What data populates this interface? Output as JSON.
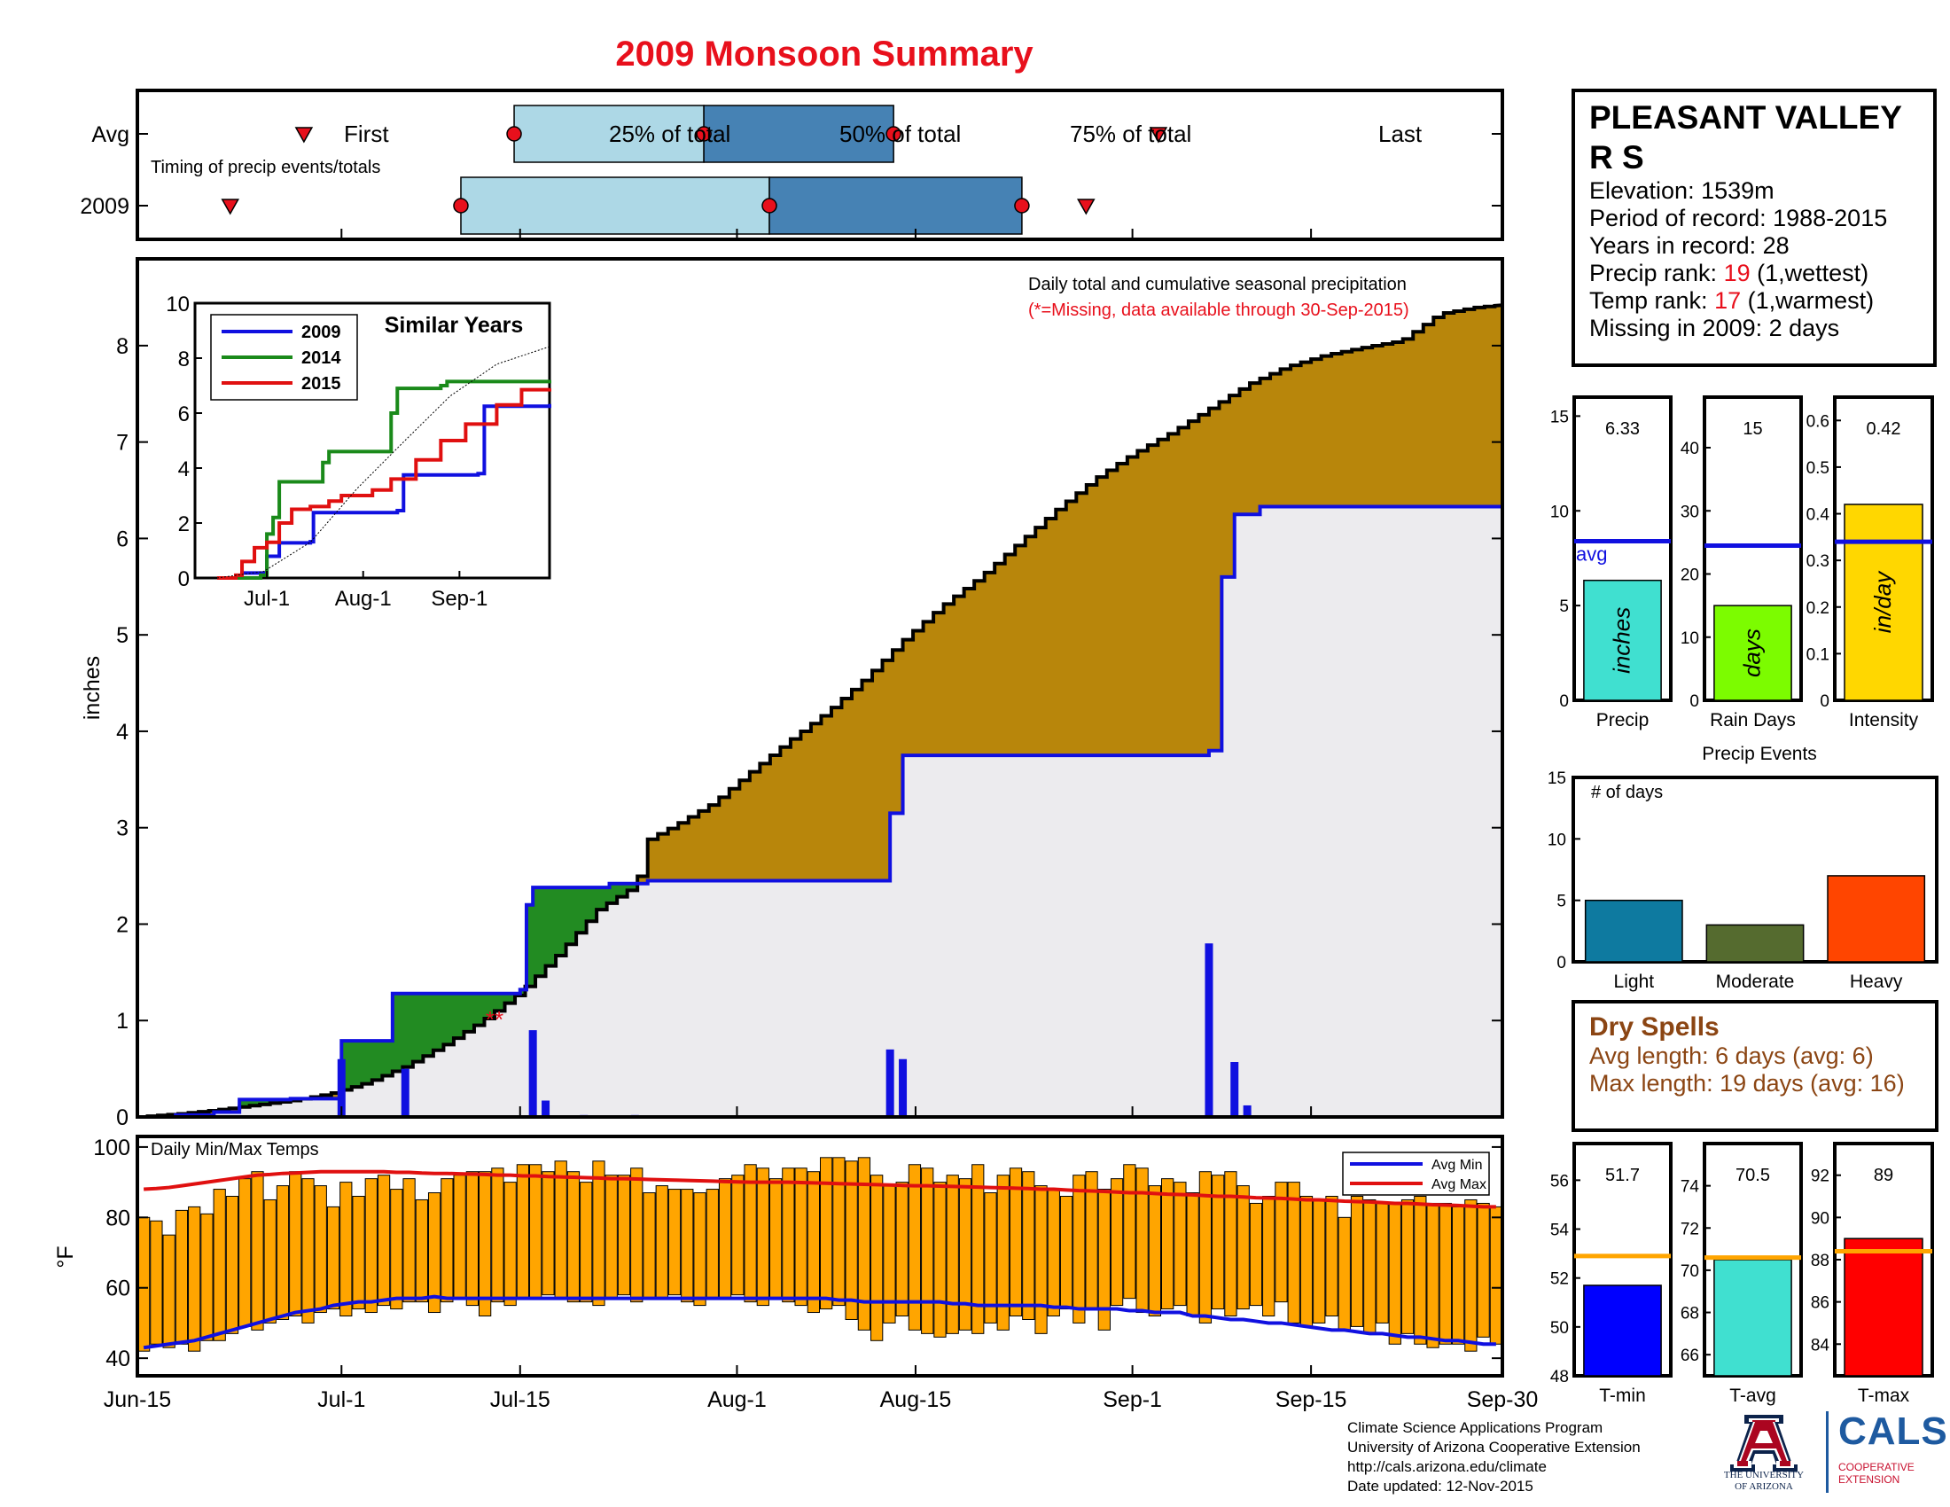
{
  "title": "2009 Monsoon Summary",
  "colors": {
    "title": "#e8101c",
    "cumulative_fill": "#b8860b",
    "similar_fill": "#228b22",
    "avg_area": "#ecebee",
    "avg_line": "#1010e0",
    "daily_bar": "#1010e0",
    "temp_bar": "#ffa500",
    "timing_light": "#add8e6",
    "timing_dark": "#4682b4",
    "rank_red": "#e8101c",
    "dry_brown": "#8b4513"
  },
  "timing": {
    "row_labels": [
      "Avg",
      "2009"
    ],
    "subtitle": "Timing of precip events/totals",
    "marker_labels": {
      "first": "First",
      "p25": "25% of total",
      "p50": "50% of total",
      "p75": "75% of total",
      "last": "Last"
    },
    "avg": {
      "first": 12.2,
      "p25": 27.6,
      "p50": 41.5,
      "p75": 55.4,
      "last": 74.8
    },
    "y2009": {
      "first": 6.8,
      "p25": 23.7,
      "p50": 46.3,
      "p75": 64.8,
      "last": 69.5
    }
  },
  "station": {
    "name_line1": "PLEASANT VALLEY",
    "name_line2": "R S",
    "elevation": "Elevation: 1539m",
    "period": "Period of record: 1988-2015",
    "years": "Years in record: 28",
    "precip_rank_prefix": "Precip rank: ",
    "precip_rank_value": "19",
    "precip_rank_suffix": " (1,wettest)",
    "temp_rank_prefix": "Temp rank: ",
    "temp_rank_value": "17",
    "temp_rank_suffix": " (1,warmest)",
    "missing": "Missing in 2009: 2 days"
  },
  "main": {
    "ylabel": "inches",
    "note_line1": "Daily total and cumulative seasonal precipitation",
    "note_line2": "(*=Missing, data available through 30-Sep-2015)",
    "missing_marker": "**",
    "missing_marker_at": {
      "day": 28,
      "value": 1.0
    },
    "yticks": [
      0,
      1,
      2,
      3,
      4,
      5,
      6,
      7,
      8
    ],
    "ylim": [
      0,
      8.9
    ],
    "day_range": [
      0,
      107
    ]
  },
  "x_axis": {
    "ticks": [
      {
        "label": "Jun-15",
        "day": 0
      },
      {
        "label": "Jul-1",
        "day": 16
      },
      {
        "label": "Jul-15",
        "day": 30
      },
      {
        "label": "Aug-1",
        "day": 47
      },
      {
        "label": "Aug-15",
        "day": 61
      },
      {
        "label": "Sep-1",
        "day": 78
      },
      {
        "label": "Sep-15",
        "day": 92
      },
      {
        "label": "Sep-30",
        "day": 107
      }
    ]
  },
  "chart_data": [
    {
      "type": "area",
      "name": "cumulative",
      "x_unit": "days since Jun-15",
      "series": [
        {
          "name": "avg_cumulative",
          "x": [
            0,
            3,
            6,
            9,
            12,
            15,
            18,
            21,
            24,
            27,
            30,
            33,
            36,
            39,
            40,
            42,
            45,
            48,
            51,
            54,
            57,
            60,
            63,
            66,
            69,
            72,
            75,
            78,
            81,
            84,
            87,
            90,
            93,
            96,
            99,
            102,
            105,
            107
          ],
          "values": [
            0,
            0.03,
            0.07,
            0.12,
            0.17,
            0.24,
            0.36,
            0.53,
            0.75,
            1.0,
            1.3,
            1.7,
            2.15,
            2.4,
            2.88,
            3.02,
            3.25,
            3.58,
            3.9,
            4.2,
            4.55,
            4.95,
            5.3,
            5.6,
            5.95,
            6.3,
            6.62,
            6.88,
            7.1,
            7.35,
            7.6,
            7.78,
            7.9,
            7.98,
            8.05,
            8.33,
            8.4,
            8.42
          ]
        },
        {
          "name": "2009_cumulative",
          "x": [
            0,
            3,
            6,
            8,
            12,
            16,
            20,
            21,
            30,
            30.5,
            31,
            37,
            40,
            58,
            59,
            60,
            84,
            85,
            86,
            88,
            107
          ],
          "values": [
            0,
            0.02,
            0.05,
            0.18,
            0.19,
            0.79,
            1.28,
            1.28,
            1.32,
            2.2,
            2.38,
            2.42,
            2.45,
            2.45,
            3.15,
            3.75,
            3.8,
            5.6,
            6.25,
            6.33,
            6.33
          ]
        }
      ]
    },
    {
      "type": "bar",
      "name": "daily_precip_2009",
      "x_unit": "days since Jun-15",
      "x": [
        16,
        21,
        31,
        32,
        35,
        39,
        59,
        60,
        84,
        86,
        87
      ],
      "values": [
        0.6,
        0.5,
        0.9,
        0.17,
        0.02,
        0.02,
        0.7,
        0.6,
        1.8,
        0.57,
        0.12
      ]
    },
    {
      "type": "line",
      "title": "Similar Years",
      "xticklabels": [
        "Jul-1",
        "Aug-1",
        "Sep-1"
      ],
      "xtick_days": [
        16,
        47,
        78
      ],
      "yticks": [
        0,
        2,
        4,
        6,
        8,
        10
      ],
      "ylim": [
        0,
        10
      ],
      "xlim": [
        0,
        107
      ],
      "series": [
        {
          "name": "2009",
          "color": "#1010e0",
          "x": [
            0,
            6,
            8,
            16,
            20,
            30,
            31,
            58,
            60,
            84,
            86,
            107
          ],
          "values": [
            0,
            0.05,
            0.18,
            0.79,
            1.28,
            1.32,
            2.38,
            2.45,
            3.75,
            3.8,
            6.25,
            6.33
          ]
        },
        {
          "name": "2014",
          "color": "#1a8a1a",
          "x": [
            0,
            14,
            16,
            18,
            20,
            28,
            30,
            34,
            36,
            56,
            58,
            72,
            74,
            107
          ],
          "values": [
            0,
            0.1,
            1.6,
            2.2,
            3.5,
            3.5,
            3.5,
            4.2,
            4.6,
            6.0,
            6.9,
            7.0,
            7.15,
            7.2
          ]
        },
        {
          "name": "2015",
          "color": "#e01010",
          "x": [
            0,
            6,
            8,
            12,
            16,
            20,
            24,
            30,
            36,
            40,
            50,
            56,
            64,
            72,
            80,
            90,
            98,
            107
          ],
          "values": [
            0,
            0.1,
            0.6,
            1.1,
            1.3,
            2.0,
            2.5,
            2.6,
            2.8,
            3.0,
            3.2,
            3.6,
            4.3,
            5.0,
            5.6,
            6.3,
            6.85,
            6.9
          ]
        },
        {
          "name": "avg",
          "color": "#000000",
          "x": [
            0,
            15,
            30,
            45,
            60,
            75,
            90,
            107
          ],
          "values": [
            0,
            0.24,
            1.3,
            3.25,
            4.95,
            6.62,
            7.78,
            8.42
          ]
        }
      ]
    },
    {
      "type": "bar",
      "title": "Precip",
      "ylim": [
        0,
        16
      ],
      "yticks": [
        0,
        5,
        10,
        15
      ],
      "value": 6.33,
      "value_label": "6.33",
      "avg": 8.4,
      "avg_label": "avg",
      "unit_label": "inches",
      "color": "#40e0d0"
    },
    {
      "type": "bar",
      "title": "Rain Days",
      "ylim": [
        0,
        48
      ],
      "yticks": [
        0,
        10,
        20,
        30,
        40
      ],
      "value": 15,
      "value_label": "15",
      "avg": 24.5,
      "unit_label": "days",
      "color": "#7cfc00"
    },
    {
      "type": "bar",
      "title": "Intensity",
      "ylim": [
        0,
        0.65
      ],
      "yticks": [
        0,
        0.1,
        0.2,
        0.3,
        0.4,
        0.5,
        0.6
      ],
      "value": 0.42,
      "value_label": "0.42",
      "avg": 0.34,
      "unit_label": "in/day",
      "color": "#ffd700"
    },
    {
      "type": "bar",
      "title": "Precip Events",
      "ylabel": "# of days",
      "categories": [
        "Light",
        "Moderate",
        "Heavy"
      ],
      "values": [
        5,
        3,
        7
      ],
      "colors": [
        "#0e7aa0",
        "#556b2f",
        "#ff4500"
      ],
      "ylim": [
        0,
        15
      ],
      "yticks": [
        0,
        5,
        10,
        15
      ]
    },
    {
      "type": "bar",
      "title": "Daily Min/Max Temps",
      "ylabel": "°F",
      "ylim": [
        35,
        103
      ],
      "yticks": [
        40,
        60,
        80,
        100
      ],
      "x_unit": "days since Jun-15",
      "legend": [
        "Avg Min",
        "Avg Max"
      ],
      "legend_position": "top-right",
      "daily_min": [
        42,
        44,
        43,
        44,
        42,
        45,
        45,
        47,
        49,
        48,
        50,
        51,
        52,
        50,
        53,
        54,
        52,
        54,
        53,
        55,
        54,
        56,
        56,
        53,
        56,
        57,
        55,
        52,
        56,
        55,
        57,
        57,
        58,
        57,
        56,
        56,
        55,
        57,
        58,
        56,
        57,
        57,
        58,
        56,
        55,
        57,
        57,
        58,
        56,
        55,
        57,
        56,
        55,
        53,
        54,
        55,
        51,
        48,
        45,
        50,
        52,
        48,
        47,
        46,
        47,
        48,
        47,
        50,
        48,
        52,
        51,
        47,
        52,
        54,
        50,
        54,
        48,
        55,
        57,
        53,
        52,
        54,
        55,
        52,
        50,
        54,
        52,
        54,
        55,
        52,
        56,
        50,
        49,
        50,
        52,
        48,
        49,
        47,
        50,
        44,
        47,
        44,
        43,
        44,
        44,
        42,
        46,
        44
      ],
      "daily_max": [
        80,
        79,
        75,
        82,
        83,
        81,
        88,
        86,
        91,
        93,
        85,
        89,
        93,
        91,
        89,
        83,
        90,
        86,
        91,
        92,
        88,
        91,
        85,
        87,
        91,
        92,
        93,
        93,
        94,
        90,
        95,
        95,
        93,
        96,
        93,
        90,
        96,
        92,
        92,
        94,
        87,
        89,
        88,
        88,
        87,
        88,
        91,
        92,
        95,
        94,
        91,
        94,
        94,
        93,
        97,
        97,
        96,
        97,
        92,
        89,
        90,
        95,
        94,
        90,
        92,
        91,
        95,
        87,
        92,
        94,
        93,
        89,
        88,
        86,
        92,
        93,
        88,
        91,
        95,
        94,
        89,
        91,
        90,
        87,
        93,
        92,
        93,
        89,
        84,
        86,
        90,
        90,
        86,
        85,
        86,
        80,
        86,
        85,
        84,
        84,
        85,
        86,
        84,
        84,
        83,
        85,
        84,
        83
      ],
      "avg_min": [
        43,
        43.5,
        44,
        44.5,
        45,
        46,
        47,
        48,
        49,
        50,
        51,
        52,
        53,
        53.5,
        54,
        55,
        55.5,
        56,
        56,
        56.5,
        57,
        57,
        57,
        57.5,
        57,
        57,
        57,
        57,
        57,
        57,
        57,
        57,
        57,
        57,
        57,
        57,
        57,
        57,
        57,
        57,
        57,
        57,
        57,
        57,
        57,
        57,
        57,
        57,
        57,
        57,
        57,
        57,
        57,
        57,
        57,
        56.5,
        56.5,
        56,
        56,
        56,
        56,
        56,
        56,
        56,
        55.5,
        55.5,
        55,
        55,
        55,
        55,
        55,
        55,
        54.5,
        54.5,
        54,
        54,
        54,
        54,
        53.5,
        53.5,
        53,
        53,
        53,
        52,
        52,
        51.5,
        51,
        51,
        50.5,
        50,
        50,
        49.5,
        49,
        48.5,
        48,
        48,
        47.5,
        47,
        47,
        46.5,
        46,
        46,
        45.5,
        45,
        45,
        44.5,
        44,
        44
      ],
      "avg_max": [
        88,
        88.2,
        88.5,
        89,
        89.5,
        90,
        90.5,
        91,
        91.5,
        92,
        92.2,
        92.5,
        92.6,
        92.8,
        93,
        93,
        93,
        93,
        93,
        93,
        92.8,
        92.8,
        92.6,
        92.5,
        92.5,
        92.4,
        92.3,
        92.2,
        92,
        92,
        91.8,
        91.8,
        91.6,
        91.5,
        91.4,
        91.3,
        91.2,
        91,
        91,
        90.9,
        90.8,
        90.7,
        90.6,
        90.5,
        90.4,
        90.3,
        90.2,
        90.1,
        90,
        90,
        90,
        90,
        89.9,
        89.8,
        89.7,
        89.6,
        89.5,
        89.4,
        89.3,
        89.2,
        89.1,
        89,
        89,
        88.9,
        88.8,
        88.7,
        88.6,
        88.5,
        88.4,
        88.3,
        88.2,
        88,
        88,
        87.8,
        87.6,
        87.5,
        87.4,
        87.2,
        87,
        87,
        86.8,
        86.6,
        86.5,
        86.4,
        86.2,
        86,
        86,
        85.8,
        85.6,
        85.5,
        85.4,
        85.2,
        85,
        85,
        84.8,
        84.6,
        84.5,
        84.4,
        84.2,
        84,
        84,
        83.8,
        83.6,
        83.5,
        83.4,
        83.2,
        83,
        83
      ]
    },
    {
      "type": "bar",
      "title": "T-min",
      "ylim": [
        48,
        57.5
      ],
      "yticks": [
        48,
        50,
        52,
        54,
        56
      ],
      "value": 51.7,
      "value_label": "51.7",
      "avg": 52.9,
      "color": "#0000ff"
    },
    {
      "type": "bar",
      "title": "T-avg",
      "ylim": [
        65,
        76
      ],
      "yticks": [
        66,
        68,
        70,
        72,
        74
      ],
      "value": 70.5,
      "value_label": "70.5",
      "avg": 70.6,
      "color": "#40e0d0"
    },
    {
      "type": "bar",
      "title": "T-max",
      "ylim": [
        82.5,
        93.5
      ],
      "yticks": [
        84,
        86,
        88,
        90,
        92
      ],
      "value": 89,
      "value_label": "89",
      "avg": 88.4,
      "color": "#ff0000"
    }
  ],
  "dry_spells": {
    "title": "Dry Spells",
    "avg_length": "Avg length: 6 days (avg: 6)",
    "max_length": "Max length: 19 days (avg: 16)"
  },
  "footer": {
    "line1": "Climate Science Applications Program",
    "line2": "University of Arizona Cooperative Extension",
    "line3": "http://cals.arizona.edu/climate",
    "line4": " Date updated: 12-Nov-2015"
  },
  "logos": {
    "ua_letter": "A",
    "ua_name_line1": "THE UNIVERSITY",
    "ua_name_line2": "OF ARIZONA",
    "cals_word": "CALS",
    "cals_sub1": "COOPERATIVE",
    "cals_sub2": "EXTENSION"
  }
}
